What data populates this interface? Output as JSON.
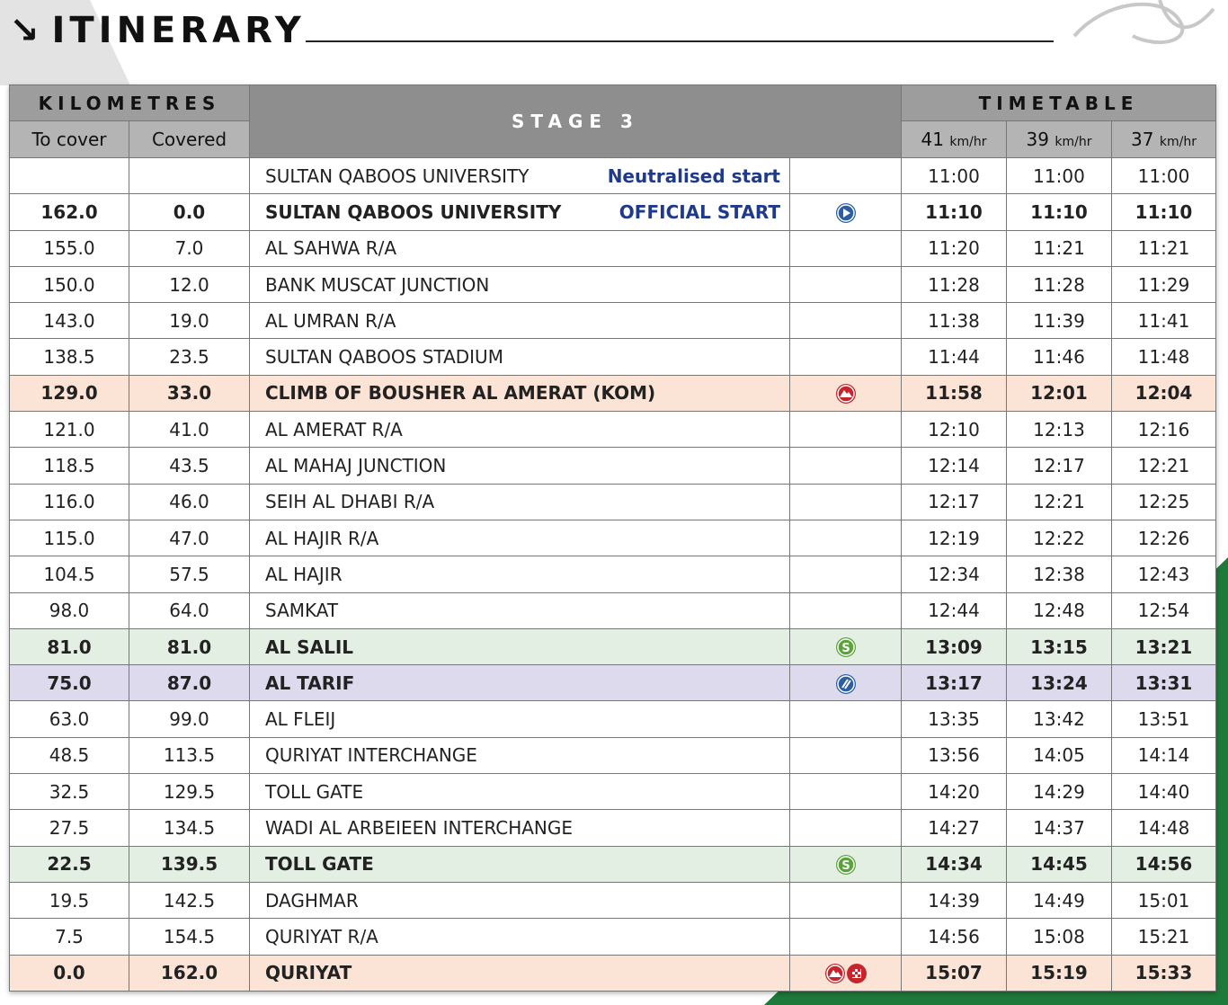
{
  "header": {
    "arrow": "↘",
    "title": "ITINERARY"
  },
  "table": {
    "kilometres": "KILOMETRES",
    "to_cover": "To cover",
    "covered": "Covered",
    "stage": "STAGE 3",
    "timetable": "TIMETABLE",
    "speeds": [
      {
        "value": "41",
        "unit": "km/hr"
      },
      {
        "value": "39",
        "unit": "km/hr"
      },
      {
        "value": "37",
        "unit": "km/hr"
      }
    ],
    "rows": [
      {
        "location": "SULTAN QABOOS UNIVERSITY",
        "note": "Neutralised start",
        "times": [
          "11:00",
          "11:00",
          "11:00"
        ]
      },
      {
        "to_cover": "162.0",
        "covered": "0.0",
        "location": "SULTAN QABOOS UNIVERSITY",
        "note": "OFFICIAL START",
        "times": [
          "11:10",
          "11:10",
          "11:10"
        ]
      },
      {
        "to_cover": "155.0",
        "covered": "7.0",
        "location": "AL SAHWA R/A",
        "times": [
          "11:20",
          "11:21",
          "11:21"
        ]
      },
      {
        "to_cover": "150.0",
        "covered": "12.0",
        "location": "BANK MUSCAT JUNCTION",
        "times": [
          "11:28",
          "11:28",
          "11:29"
        ]
      },
      {
        "to_cover": "143.0",
        "covered": "19.0",
        "location": "AL UMRAN R/A",
        "times": [
          "11:38",
          "11:39",
          "11:41"
        ]
      },
      {
        "to_cover": "138.5",
        "covered": "23.5",
        "location": "SULTAN QABOOS STADIUM",
        "times": [
          "11:44",
          "11:46",
          "11:48"
        ]
      },
      {
        "to_cover": "129.0",
        "covered": "33.0",
        "location": "CLIMB OF BOUSHER AL AMERAT (KOM)",
        "times": [
          "11:58",
          "12:01",
          "12:04"
        ]
      },
      {
        "to_cover": "121.0",
        "covered": "41.0",
        "location": "AL AMERAT R/A",
        "times": [
          "12:10",
          "12:13",
          "12:16"
        ]
      },
      {
        "to_cover": "118.5",
        "covered": "43.5",
        "location": "AL MAHAJ JUNCTION",
        "times": [
          "12:14",
          "12:17",
          "12:21"
        ]
      },
      {
        "to_cover": "116.0",
        "covered": "46.0",
        "location": "SEIH AL DHABI R/A",
        "times": [
          "12:17",
          "12:21",
          "12:25"
        ]
      },
      {
        "to_cover": "115.0",
        "covered": "47.0",
        "location": "AL HAJIR R/A",
        "times": [
          "12:19",
          "12:22",
          "12:26"
        ]
      },
      {
        "to_cover": "104.5",
        "covered": "57.5",
        "location": "AL HAJIR",
        "times": [
          "12:34",
          "12:38",
          "12:43"
        ]
      },
      {
        "to_cover": "98.0",
        "covered": "64.0",
        "location": "SAMKAT",
        "times": [
          "12:44",
          "12:48",
          "12:54"
        ]
      },
      {
        "to_cover": "81.0",
        "covered": "81.0",
        "location": "AL SALIL",
        "times": [
          "13:09",
          "13:15",
          "13:21"
        ]
      },
      {
        "to_cover": "75.0",
        "covered": "87.0",
        "location": "AL TARIF",
        "times": [
          "13:17",
          "13:24",
          "13:31"
        ]
      },
      {
        "to_cover": "63.0",
        "covered": "99.0",
        "location": "AL FLEIJ",
        "times": [
          "13:35",
          "13:42",
          "13:51"
        ]
      },
      {
        "to_cover": "48.5",
        "covered": "113.5",
        "location": "QURIYAT INTERCHANGE",
        "times": [
          "13:56",
          "14:05",
          "14:14"
        ]
      },
      {
        "to_cover": "32.5",
        "covered": "129.5",
        "location": "TOLL GATE",
        "times": [
          "14:20",
          "14:29",
          "14:40"
        ]
      },
      {
        "to_cover": "27.5",
        "covered": "134.5",
        "location": "WADI AL ARBEIEEN INTERCHANGE",
        "times": [
          "14:27",
          "14:37",
          "14:48"
        ]
      },
      {
        "to_cover": "22.5",
        "covered": "139.5",
        "location": "TOLL GATE",
        "times": [
          "14:34",
          "14:45",
          "14:56"
        ]
      },
      {
        "to_cover": "19.5",
        "covered": "142.5",
        "location": "DAGHMAR",
        "times": [
          "14:39",
          "14:49",
          "15:01"
        ]
      },
      {
        "to_cover": "7.5",
        "covered": "154.5",
        "location": "QURIYAT R/A",
        "times": [
          "14:56",
          "15:08",
          "15:21"
        ]
      },
      {
        "to_cover": "0.0",
        "covered": "162.0",
        "location": "QURIYAT",
        "times": [
          "15:07",
          "15:19",
          "15:33"
        ]
      }
    ]
  }
}
